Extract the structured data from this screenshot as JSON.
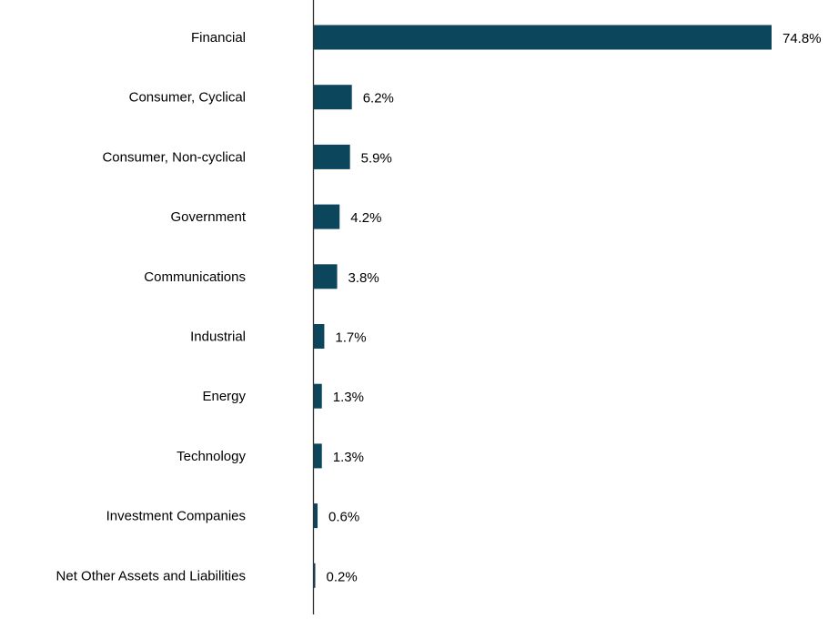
{
  "chart_data": {
    "type": "bar",
    "orientation": "horizontal",
    "categories": [
      "Financial",
      "Consumer, Cyclical",
      "Consumer, Non-cyclical",
      "Government",
      "Communications",
      "Industrial",
      "Energy",
      "Technology",
      "Investment Companies",
      "Net Other Assets and Liabilities"
    ],
    "values": [
      74.8,
      6.2,
      5.9,
      4.2,
      3.8,
      1.7,
      1.3,
      1.3,
      0.6,
      0.2
    ],
    "labels": [
      "74.8%",
      "6.2%",
      "5.9%",
      "4.2%",
      "3.8%",
      "1.7%",
      "1.3%",
      "1.3%",
      "0.6%",
      "0.2%"
    ],
    "unit": "%",
    "xlim": [
      0,
      74.8
    ],
    "grid": false,
    "bar_color": "#0B465D"
  }
}
